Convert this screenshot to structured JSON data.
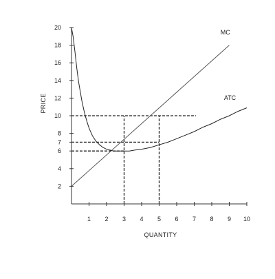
{
  "chart_data": {
    "type": "line",
    "xlabel": "QUANTITY",
    "ylabel": "PRICE",
    "xlim": [
      0,
      10
    ],
    "ylim": [
      0,
      20
    ],
    "x_ticks": [
      1,
      2,
      3,
      4,
      5,
      6,
      7,
      8,
      9,
      10
    ],
    "y_ticks": [
      2,
      4,
      6,
      7,
      8,
      10,
      12,
      14,
      16,
      18,
      20
    ],
    "grid": false,
    "legend": "none",
    "series": [
      {
        "name": "MC",
        "color": "#555555",
        "x": [
          0.0,
          9.0
        ],
        "y": [
          2.0,
          18.0
        ]
      },
      {
        "name": "ATC",
        "color": "#222222",
        "x": [
          0.0,
          0.1,
          0.2,
          0.3,
          0.4,
          0.5,
          0.6,
          0.7,
          0.8,
          0.9,
          1.0,
          1.2,
          1.4,
          1.6,
          1.8,
          2.0,
          2.2,
          2.4,
          2.6,
          2.8,
          3.0,
          3.3,
          3.6,
          4.0,
          4.5,
          5.0,
          5.5,
          6.0,
          6.5,
          7.0,
          7.5,
          8.0,
          8.5,
          9.0,
          9.5,
          10.0
        ],
        "y": [
          20.0,
          18.9,
          17.2,
          15.4,
          13.9,
          12.7,
          11.6,
          10.7,
          9.9,
          9.2,
          8.6,
          7.7,
          7.1,
          6.7,
          6.4,
          6.2,
          6.1,
          6.0,
          6.0,
          6.0,
          6.0,
          6.0,
          6.1,
          6.2,
          6.4,
          6.7,
          7.0,
          7.4,
          7.8,
          8.2,
          8.7,
          9.1,
          9.6,
          10.0,
          10.5,
          10.9
        ]
      }
    ],
    "annotations": [
      {
        "text": "MC",
        "x": 8.5,
        "y": 19.2
      },
      {
        "text": "ATC",
        "x": 8.7,
        "y": 11.8
      }
    ],
    "dashed_guides": [
      {
        "orientation": "horizontal",
        "value": 10,
        "from": 0,
        "to": 7.1
      },
      {
        "orientation": "horizontal",
        "value": 7,
        "from": 0,
        "to": 5
      },
      {
        "orientation": "horizontal",
        "value": 6,
        "from": 0,
        "to": 3
      },
      {
        "orientation": "vertical",
        "value": 3,
        "from": 0,
        "to": 10
      },
      {
        "orientation": "vertical",
        "value": 5,
        "from": 0,
        "to": 10
      }
    ]
  }
}
